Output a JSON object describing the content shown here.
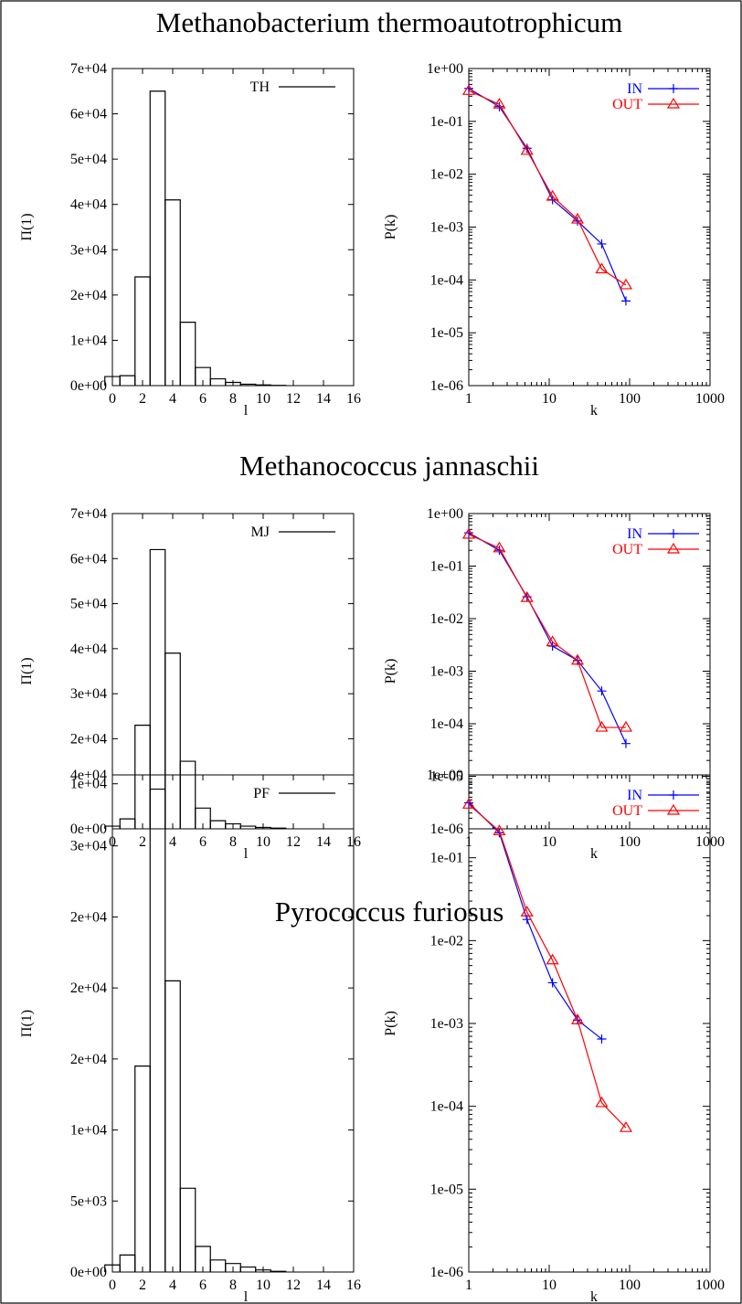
{
  "sections": [
    {
      "title": "Methanobacterium thermoautotrophicum",
      "chart_data": [
        {
          "type": "histogram",
          "xlabel": "l",
          "ylabel": "Π(1)",
          "xlim": [
            0,
            16
          ],
          "ylim": [
            0,
            70000
          ],
          "x_ticks": [
            "0",
            "2",
            "4",
            "6",
            "8",
            "10",
            "12",
            "14",
            "16"
          ],
          "y_ticks": [
            "0e+00",
            "1e+04",
            "2e+04",
            "3e+04",
            "4e+04",
            "5e+04",
            "6e+04",
            "7e+04"
          ],
          "series": [
            {
              "name": "TH",
              "color": "#000000",
              "x": [
                0,
                1,
                2,
                3,
                4,
                5,
                6,
                7,
                8,
                9,
                10,
                11,
                12
              ],
              "values": [
                2000,
                2200,
                24000,
                65000,
                41000,
                14000,
                4000,
                1500,
                700,
                300,
                150,
                50,
                0
              ]
            }
          ],
          "legend": "top-right",
          "grid": false
        },
        {
          "type": "line",
          "xlabel": "k",
          "ylabel": "P(k)",
          "xscale": "log",
          "yscale": "log",
          "xlim": [
            1,
            1000
          ],
          "ylim": [
            1e-06,
            1
          ],
          "x_ticks": [
            "1",
            "10",
            "100",
            "1000"
          ],
          "y_ticks": [
            "1e-06",
            "1e-05",
            "1e-04",
            "1e-03",
            "1e-02",
            "1e-01",
            "1e+00"
          ],
          "series": [
            {
              "name": "IN",
              "color": "#0000ff",
              "marker": "plus",
              "x": [
                1,
                2.4,
                5.3,
                11,
                22.5,
                45,
                90
              ],
              "y": [
                0.42,
                0.19,
                0.031,
                0.0033,
                0.0013,
                0.00048,
                4e-05
              ]
            },
            {
              "name": "OUT",
              "color": "#ff0000",
              "marker": "triangle",
              "x": [
                1,
                2.4,
                5.3,
                11,
                22.5,
                45,
                90
              ],
              "y": [
                0.38,
                0.21,
                0.028,
                0.0038,
                0.0014,
                0.00016,
                8e-05
              ]
            }
          ],
          "legend": "top-right",
          "grid": false
        }
      ]
    },
    {
      "title": "Methanococcus jannaschii",
      "chart_data": [
        {
          "type": "histogram",
          "xlabel": "l",
          "ylabel": "Π(1)",
          "xlim": [
            0,
            16
          ],
          "ylim": [
            0,
            70000
          ],
          "x_ticks": [
            "0",
            "2",
            "4",
            "6",
            "8",
            "10",
            "12",
            "14",
            "16"
          ],
          "y_ticks": [
            "0e+00",
            "1e+04",
            "2e+04",
            "3e+04",
            "4e+04",
            "5e+04",
            "6e+04",
            "7e+04"
          ],
          "series": [
            {
              "name": "MJ",
              "color": "#000000",
              "x": [
                0,
                1,
                2,
                3,
                4,
                5,
                6,
                7,
                8,
                9,
                10,
                11,
                12
              ],
              "values": [
                600,
                2200,
                23000,
                62000,
                39000,
                15000,
                4600,
                1800,
                1100,
                600,
                300,
                150,
                0
              ]
            }
          ],
          "legend": "top-right",
          "grid": false
        },
        {
          "type": "line",
          "xlabel": "k",
          "ylabel": "P(k)",
          "xscale": "log",
          "yscale": "log",
          "xlim": [
            1,
            1000
          ],
          "ylim": [
            1e-06,
            1
          ],
          "x_ticks": [
            "1",
            "10",
            "100",
            "1000"
          ],
          "y_ticks": [
            "1e-06",
            "1e-05",
            "1e-04",
            "1e-03",
            "1e-02",
            "1e-01",
            "1e+00"
          ],
          "series": [
            {
              "name": "IN",
              "color": "#0000ff",
              "marker": "plus",
              "x": [
                1,
                2.4,
                5.3,
                11,
                22.5,
                45,
                90
              ],
              "y": [
                0.43,
                0.2,
                0.026,
                0.003,
                0.0016,
                0.00042,
                4.2e-05
              ]
            },
            {
              "name": "OUT",
              "color": "#ff0000",
              "marker": "triangle",
              "x": [
                1,
                2.4,
                5.3,
                11,
                22.5,
                45,
                90
              ],
              "y": [
                0.4,
                0.22,
                0.025,
                0.0036,
                0.0016,
                8.5e-05,
                8.5e-05
              ]
            }
          ],
          "legend": "top-right",
          "grid": false
        }
      ]
    },
    {
      "title": "Pyrococcus furiosus",
      "chart_data": [
        {
          "type": "histogram",
          "xlabel": "l",
          "ylabel": "Π(1)",
          "xlim": [
            0,
            16
          ],
          "ylim": [
            0,
            35000
          ],
          "x_ticks": [
            "0",
            "2",
            "4",
            "6",
            "8",
            "10",
            "12",
            "14",
            "16"
          ],
          "y_ticks": [
            "0e+00",
            "5e+03",
            "1e+04",
            "2e+04",
            "2e+04",
            "2e+04",
            "3e+04",
            "4e+04"
          ],
          "series": [
            {
              "name": "PF",
              "color": "#000000",
              "x": [
                0,
                1,
                2,
                3,
                4,
                5,
                6,
                7,
                8,
                9,
                10,
                11,
                12
              ],
              "values": [
                500,
                1200,
                14500,
                34000,
                20500,
                5900,
                1800,
                850,
                600,
                350,
                150,
                50,
                0
              ]
            }
          ],
          "legend": "top-right",
          "grid": false
        },
        {
          "type": "line",
          "xlabel": "k",
          "ylabel": "P(k)",
          "xscale": "log",
          "yscale": "log",
          "xlim": [
            1,
            1000
          ],
          "ylim": [
            1e-06,
            1
          ],
          "x_ticks": [
            "1",
            "10",
            "100",
            "1000"
          ],
          "y_ticks": [
            "1e-06",
            "1e-05",
            "1e-04",
            "1e-03",
            "1e-02",
            "1e-01",
            "1e+00"
          ],
          "series": [
            {
              "name": "IN",
              "color": "#0000ff",
              "marker": "plus",
              "x": [
                1,
                2.4,
                5.3,
                11,
                22.5,
                45
              ],
              "y": [
                0.46,
                0.2,
                0.018,
                0.0031,
                0.0011,
                0.00065
              ]
            },
            {
              "name": "OUT",
              "color": "#ff0000",
              "marker": "triangle",
              "x": [
                1,
                2.4,
                5.3,
                11,
                22.5,
                45,
                90
              ],
              "y": [
                0.44,
                0.21,
                0.022,
                0.0058,
                0.0011,
                0.00011,
                5.5e-05
              ]
            }
          ],
          "legend": "top-right",
          "grid": false
        }
      ]
    }
  ]
}
